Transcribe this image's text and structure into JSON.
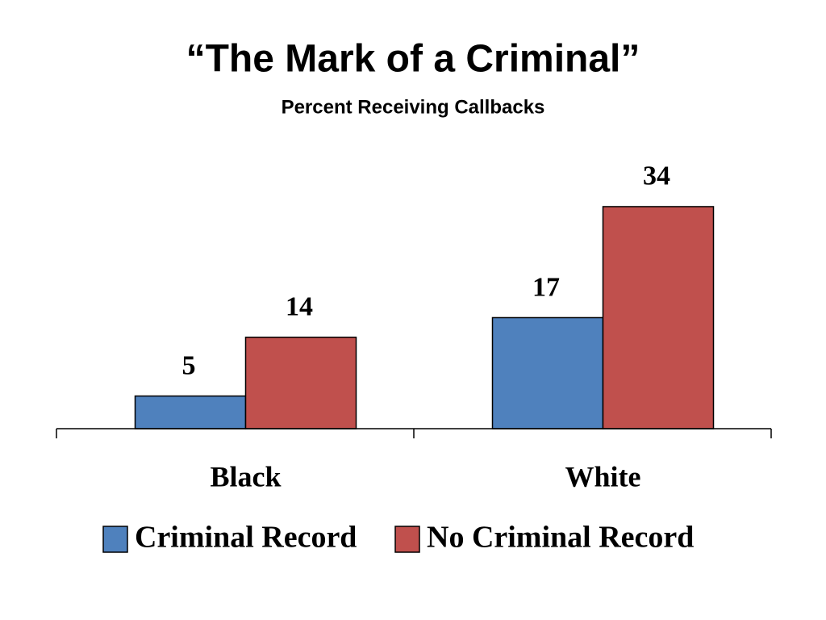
{
  "chart_data": {
    "type": "bar",
    "title": "“The Mark of a Criminal”",
    "subtitle": "Percent Receiving Callbacks",
    "categories": [
      "Black",
      "White"
    ],
    "series": [
      {
        "name": "Criminal Record",
        "color": "#4f81bd",
        "values": [
          5,
          17
        ]
      },
      {
        "name": "No Criminal Record",
        "color": "#c0504d",
        "values": [
          14,
          34
        ]
      }
    ]
  }
}
